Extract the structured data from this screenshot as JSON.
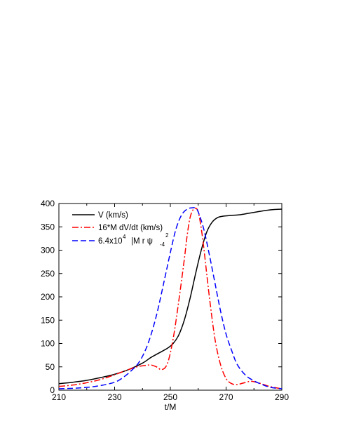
{
  "chart_data": {
    "type": "line",
    "xlabel": "t/M",
    "ylabel": "",
    "xlim": [
      210,
      290
    ],
    "ylim": [
      0,
      400
    ],
    "x_ticks": [
      210,
      230,
      250,
      270,
      290
    ],
    "y_ticks": [
      0,
      50,
      100,
      150,
      200,
      250,
      300,
      350,
      400
    ],
    "grid": false,
    "legend_position": "top-left",
    "series": [
      {
        "name": "V (km/s)",
        "color": "#000000",
        "style": "solid",
        "x": [
          210,
          215,
          220,
          225,
          230,
          235,
          240,
          243,
          246,
          249,
          251,
          253,
          255,
          257,
          259,
          261,
          263,
          265,
          267,
          269,
          271,
          273,
          275,
          278,
          281,
          284,
          287,
          290
        ],
        "y": [
          14,
          17,
          21,
          27,
          34,
          44,
          58,
          70,
          80,
          90,
          100,
          118,
          150,
          195,
          248,
          298,
          338,
          360,
          370,
          373,
          374,
          375,
          376,
          379,
          382,
          385,
          387,
          388
        ]
      },
      {
        "name": "16*M dV/dt (km/s)",
        "color": "#ff0000",
        "style": "dashdot",
        "x": [
          210,
          215,
          220,
          225,
          230,
          234,
          238,
          241,
          243,
          245,
          247,
          249,
          251,
          253,
          255,
          256,
          257,
          258,
          259,
          260,
          261,
          262,
          264,
          266,
          268,
          270,
          272,
          274,
          276,
          279,
          282,
          285,
          288,
          290
        ],
        "y": [
          8,
          11,
          16,
          23,
          33,
          42,
          50,
          53,
          54,
          50,
          44,
          58,
          110,
          190,
          280,
          330,
          368,
          385,
          390,
          382,
          350,
          305,
          200,
          110,
          55,
          25,
          14,
          12,
          15,
          19,
          15,
          9,
          5,
          3
        ]
      },
      {
        "name": "6.4x10",
        "name_sup": "4",
        "name_rest": "|M r ψ",
        "name_sub": "4",
        "name_sup2": "2",
        "color": "#0000ff",
        "style": "dashed",
        "x": [
          210,
          215,
          220,
          225,
          230,
          233,
          236,
          239,
          242,
          245,
          248,
          250,
          252,
          254,
          256,
          258,
          259,
          260,
          262,
          264,
          266,
          268,
          270,
          272,
          274,
          277,
          280,
          283,
          286,
          290
        ],
        "y": [
          3,
          4,
          6,
          10,
          17,
          27,
          42,
          62,
          100,
          160,
          240,
          295,
          345,
          375,
          388,
          391,
          390,
          382,
          345,
          290,
          230,
          170,
          120,
          85,
          55,
          32,
          20,
          12,
          6,
          3
        ]
      }
    ]
  }
}
